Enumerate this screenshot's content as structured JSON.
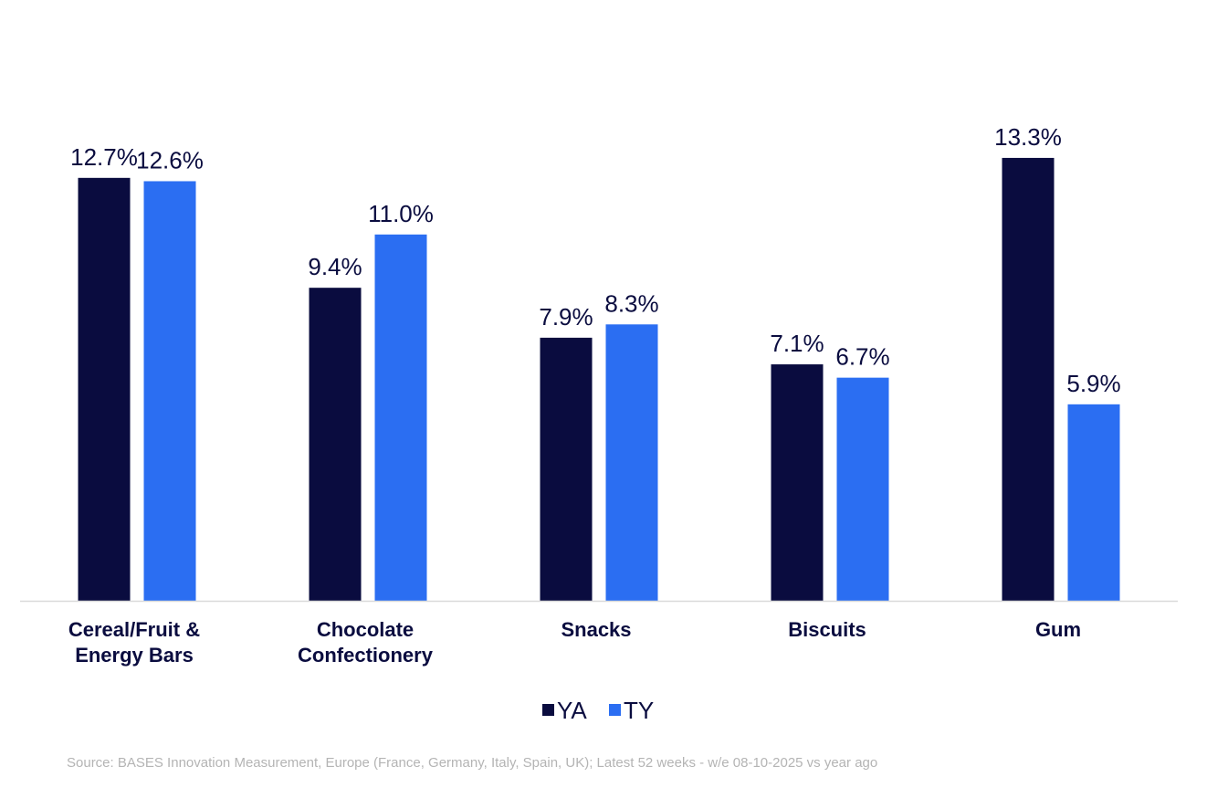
{
  "chart_data": {
    "type": "bar",
    "categories": [
      [
        "Cereal/Fruit &",
        "Energy Bars"
      ],
      [
        "Chocolate",
        "Confectionery"
      ],
      [
        "Snacks"
      ],
      [
        "Biscuits"
      ],
      [
        "Gum"
      ]
    ],
    "series": [
      {
        "name": "YA",
        "color": "#0a0c3f",
        "values": [
          12.7,
          9.4,
          7.9,
          7.1,
          13.3
        ],
        "labels": [
          "12.7%",
          "9.4%",
          "7.9%",
          "7.1%",
          "13.3%"
        ]
      },
      {
        "name": "TY",
        "color": "#2b6ef2",
        "values": [
          12.6,
          11.0,
          8.3,
          6.7,
          5.9
        ],
        "labels": [
          "12.6%",
          "11.0%",
          "8.3%",
          "6.7%",
          "5.9%"
        ]
      }
    ],
    "title": "",
    "xlabel": "",
    "ylabel": "",
    "ylim": [
      0,
      15.3
    ],
    "grid": false,
    "legend": "bottom-center"
  },
  "source": "Source:  BASES Innovation Measurement,  Europe (France, Germany, Italy, Spain, UK); Latest 52 weeks  - w/e 08-10-2025 vs  year ago"
}
